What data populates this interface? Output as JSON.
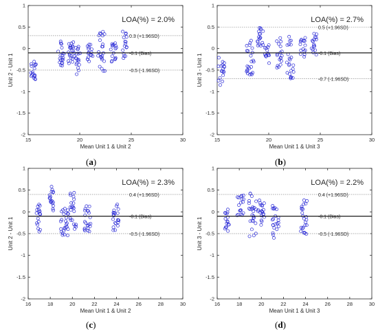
{
  "chart_data": [
    {
      "type": "scatter",
      "panel": "(a)",
      "panel_letter": "a",
      "annotation": "LOA(%) = 2.0%",
      "xlabel": "Mean Unit 1 & Unit 2",
      "ylabel": "Unit 2 - Unit 1",
      "xlim": [
        15,
        30
      ],
      "ylim": [
        -2,
        1
      ],
      "xticks": [
        15,
        20,
        25,
        30
      ],
      "yticks": [
        -2,
        -1.5,
        -1,
        -0.5,
        0,
        0.5,
        1
      ],
      "ytick_labels": [
        "-2",
        "-1.5",
        "-1",
        "-0.5",
        "0",
        "0.5",
        "1"
      ],
      "bias": -0.1,
      "upper_loa": 0.3,
      "lower_loa": -0.5,
      "bias_label": "-0.1 (Bias)",
      "upper_label": "0.3 (+1.96SD)",
      "lower_label": "-0.5 (-1.96SD)",
      "clusters": [
        {
          "x": 15.5,
          "spread_x": 0.3,
          "y_min": -0.8,
          "y_max": -0.3,
          "n": 18
        },
        {
          "x": 18.2,
          "spread_x": 0.3,
          "y_min": -0.4,
          "y_max": 0.2,
          "n": 20
        },
        {
          "x": 19.2,
          "spread_x": 0.3,
          "y_min": -0.5,
          "y_max": 0.15,
          "n": 22
        },
        {
          "x": 19.8,
          "spread_x": 0.25,
          "y_min": -0.6,
          "y_max": 0.1,
          "n": 18
        },
        {
          "x": 21.0,
          "spread_x": 0.3,
          "y_min": -0.3,
          "y_max": 0.1,
          "n": 16
        },
        {
          "x": 22.1,
          "spread_x": 0.35,
          "y_min": -0.55,
          "y_max": 0.4,
          "n": 24
        },
        {
          "x": 23.3,
          "spread_x": 0.3,
          "y_min": -0.35,
          "y_max": 0.15,
          "n": 16
        },
        {
          "x": 24.4,
          "spread_x": 0.25,
          "y_min": -0.25,
          "y_max": 0.4,
          "n": 16
        }
      ]
    },
    {
      "type": "scatter",
      "panel": "(b)",
      "panel_letter": "b",
      "annotation": "LOA(%) = 2.7%",
      "xlabel": "Mean Unit 1 & Unit 3",
      "ylabel": "Unit 3 - Unit 1",
      "xlim": [
        15,
        30
      ],
      "ylim": [
        -2,
        1
      ],
      "xticks": [
        15,
        20,
        25,
        30
      ],
      "yticks": [
        -2,
        -1.5,
        -1,
        -0.5,
        0,
        0.5,
        1
      ],
      "ytick_labels": [
        "-2",
        "-1.5",
        "-1",
        "-0.5",
        "0",
        "0.5",
        "1"
      ],
      "bias": -0.1,
      "upper_loa": 0.5,
      "lower_loa": -0.7,
      "bias_label": "-0.1 (Bias)",
      "upper_label": "0.5 (+1.96SD)",
      "lower_label": "-0.7 (-1.96SD)",
      "clusters": [
        {
          "x": 15.4,
          "spread_x": 0.3,
          "y_min": -0.85,
          "y_max": -0.2,
          "n": 18
        },
        {
          "x": 18.2,
          "spread_x": 0.35,
          "y_min": -0.65,
          "y_max": 0.2,
          "n": 24
        },
        {
          "x": 19.2,
          "spread_x": 0.3,
          "y_min": 0.05,
          "y_max": 0.5,
          "n": 18
        },
        {
          "x": 19.8,
          "spread_x": 0.25,
          "y_min": -0.4,
          "y_max": 0.1,
          "n": 14
        },
        {
          "x": 21.0,
          "spread_x": 0.3,
          "y_min": -0.45,
          "y_max": 0.3,
          "n": 18
        },
        {
          "x": 22.1,
          "spread_x": 0.35,
          "y_min": -0.7,
          "y_max": 0.3,
          "n": 24
        },
        {
          "x": 23.3,
          "spread_x": 0.3,
          "y_min": -0.2,
          "y_max": 0.25,
          "n": 16
        },
        {
          "x": 24.4,
          "spread_x": 0.25,
          "y_min": -0.15,
          "y_max": 0.35,
          "n": 16
        }
      ]
    },
    {
      "type": "scatter",
      "panel": "(c)",
      "panel_letter": "c",
      "annotation": "LOA(%) = 2.3%",
      "xlabel": "Mean Unit 1 & Unit 2",
      "ylabel": "Unit 2 - Unit 1",
      "xlim": [
        16,
        30
      ],
      "ylim": [
        -2,
        1
      ],
      "xticks": [
        16,
        18,
        20,
        22,
        24,
        26,
        28,
        30
      ],
      "yticks": [
        -2,
        -1.5,
        -1,
        -0.5,
        0,
        0.5,
        1
      ],
      "ytick_labels": [
        "-2",
        "-1.5",
        "-1",
        "-0.5",
        "0",
        "0.5",
        "1"
      ],
      "bias": -0.1,
      "upper_loa": 0.4,
      "lower_loa": -0.5,
      "bias_label": "-0.1 (Bias)",
      "upper_label": "0.4 (+1.96SD)",
      "lower_label": "-0.5 (-1.96SD)",
      "clusters": [
        {
          "x": 16.9,
          "spread_x": 0.2,
          "y_min": -0.5,
          "y_max": 0.2,
          "n": 18
        },
        {
          "x": 18.1,
          "spread_x": 0.2,
          "y_min": 0.0,
          "y_max": 0.6,
          "n": 18
        },
        {
          "x": 19.3,
          "spread_x": 0.35,
          "y_min": -0.55,
          "y_max": 0.15,
          "n": 26
        },
        {
          "x": 20.1,
          "spread_x": 0.3,
          "y_min": -0.45,
          "y_max": 0.5,
          "n": 22
        },
        {
          "x": 21.4,
          "spread_x": 0.3,
          "y_min": -0.45,
          "y_max": 0.2,
          "n": 22
        },
        {
          "x": 23.9,
          "spread_x": 0.3,
          "y_min": -0.45,
          "y_max": 0.2,
          "n": 22
        }
      ]
    },
    {
      "type": "scatter",
      "panel": "(d)",
      "panel_letter": "d",
      "annotation": "LOA(%) = 2.2%",
      "xlabel": "Mean Unit 1 & Unit 3",
      "ylabel": "Unit 3 - Unit 1",
      "xlim": [
        16,
        30
      ],
      "ylim": [
        -2,
        1
      ],
      "xticks": [
        16,
        18,
        20,
        22,
        24,
        26,
        28,
        30
      ],
      "yticks": [
        -2,
        -1.5,
        -1,
        -0.5,
        0,
        0.5,
        1
      ],
      "ytick_labels": [
        "-2",
        "-1.5",
        "-1",
        "-0.5",
        "0",
        "0.5",
        "1"
      ],
      "bias": -0.1,
      "upper_loa": 0.4,
      "lower_loa": -0.5,
      "bias_label": "-0.1 (Bias)",
      "upper_label": "0.4 (+1.96SD)",
      "lower_label": "-0.5 (-1.96SD)",
      "clusters": [
        {
          "x": 16.9,
          "spread_x": 0.2,
          "y_min": -0.45,
          "y_max": 0.1,
          "n": 16
        },
        {
          "x": 18.1,
          "spread_x": 0.3,
          "y_min": -0.1,
          "y_max": 0.4,
          "n": 18
        },
        {
          "x": 19.2,
          "spread_x": 0.35,
          "y_min": -0.6,
          "y_max": 0.45,
          "n": 26
        },
        {
          "x": 20.0,
          "spread_x": 0.3,
          "y_min": -0.35,
          "y_max": 0.3,
          "n": 20
        },
        {
          "x": 21.3,
          "spread_x": 0.3,
          "y_min": -0.6,
          "y_max": 0.2,
          "n": 22
        },
        {
          "x": 23.8,
          "spread_x": 0.35,
          "y_min": -0.55,
          "y_max": 0.3,
          "n": 24
        }
      ]
    }
  ]
}
